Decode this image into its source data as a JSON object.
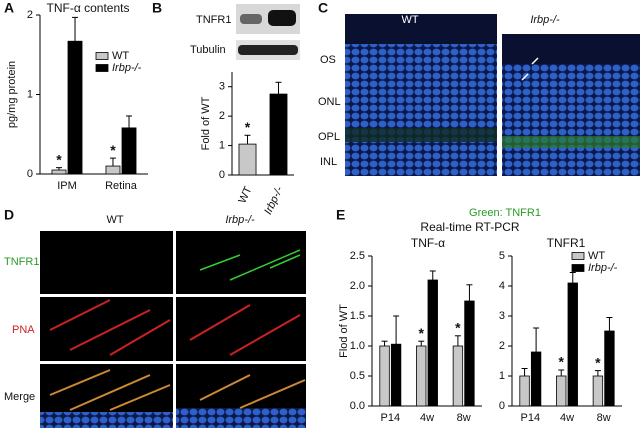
{
  "panel_labels": [
    "A",
    "B",
    "C",
    "D",
    "E"
  ],
  "blot": {
    "labels": [
      "TNFR1",
      "Tubulin"
    ]
  },
  "panel_c": {
    "columns": [
      "WT",
      "Irbp-/-"
    ],
    "layers": [
      "OS",
      "ONL",
      "OPL",
      "INL"
    ],
    "caption": "Green: TNFR1"
  },
  "panel_d": {
    "columns": [
      "WT",
      "Irbp-/-"
    ],
    "rows": [
      "TNFR1",
      "PNA",
      "Merge"
    ]
  },
  "panel_e_title": "Real-time RT-PCR",
  "chart_data": [
    {
      "type": "bar",
      "title": "TNF-α contents",
      "y_label": "pg/mg protein",
      "categories": [
        "IPM",
        "Retina"
      ],
      "ylim": [
        0,
        2
      ],
      "yticks": [
        0,
        1,
        2
      ],
      "legend": "upper right",
      "series": [
        {
          "name": "WT",
          "color": "#c8c8c8",
          "values": [
            0.05,
            0.1
          ],
          "errors": [
            0.03,
            0.1
          ],
          "significance": [
            "*",
            "*"
          ]
        },
        {
          "name": "Irbp-/-",
          "color": "#000000",
          "values": [
            1.67,
            0.58
          ],
          "errors": [
            0.3,
            0.15
          ]
        }
      ]
    },
    {
      "type": "bar",
      "y_label": "Fold of WT",
      "categories": [
        "WT",
        "Irbp-/-"
      ],
      "ylim": [
        0,
        3.5
      ],
      "yticks": [
        0,
        1,
        2,
        3
      ],
      "values": [
        1.05,
        2.75
      ],
      "errors": [
        0.3,
        0.4
      ],
      "colors": [
        "#c8c8c8",
        "#000000"
      ],
      "significance": [
        "*",
        null
      ]
    },
    {
      "type": "bar",
      "title": "TNF-α",
      "y_label": "Flod of WT",
      "categories": [
        "P14",
        "4w",
        "8w"
      ],
      "ylim": [
        0,
        2.5
      ],
      "yticks": [
        {
          "value": 0,
          "label": "0.0"
        },
        {
          "value": 0.5,
          "label": "0.5"
        },
        {
          "value": 1,
          "label": "1.0"
        },
        {
          "value": 1.5,
          "label": "1.5"
        },
        {
          "value": 2,
          "label": "2.0"
        },
        {
          "value": 2.5,
          "label": "2.5"
        }
      ],
      "series": [
        {
          "name": "WT",
          "color": "#c8c8c8",
          "values": [
            1,
            1,
            1
          ],
          "errors": [
            0.08,
            0.08,
            0.17
          ],
          "significance": [
            null,
            "*",
            "*"
          ]
        },
        {
          "name": "Irbp-/-",
          "color": "#000000",
          "values": [
            1.03,
            2.1,
            1.75
          ],
          "errors": [
            0.47,
            0.15,
            0.27
          ]
        }
      ]
    },
    {
      "type": "bar",
      "title": "TNFR1",
      "categories": [
        "P14",
        "4w",
        "8w"
      ],
      "ylim": [
        0,
        5
      ],
      "yticks": [
        0,
        1,
        2,
        3,
        4,
        5
      ],
      "legend": "upper right",
      "series": [
        {
          "name": "WT",
          "color": "#c8c8c8",
          "values": [
            1,
            1,
            1
          ],
          "errors": [
            0.25,
            0.2,
            0.18
          ],
          "significance": [
            null,
            "*",
            "*"
          ]
        },
        {
          "name": "Irbp-/-",
          "color": "#000000",
          "values": [
            1.8,
            4.1,
            2.5
          ],
          "errors": [
            0.8,
            0.35,
            0.45
          ]
        }
      ]
    }
  ]
}
